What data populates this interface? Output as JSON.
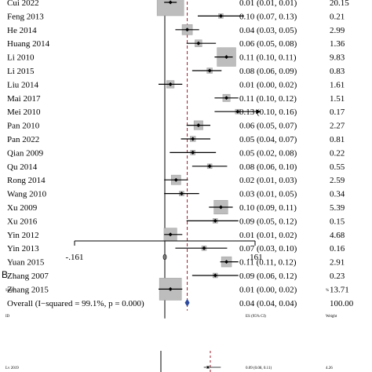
{
  "chart_data": [
    {
      "type": "forest",
      "panel": "",
      "xtick_labels": [
        "-.161",
        "0",
        ".161"
      ],
      "xticks": [
        -0.161,
        0,
        0.161
      ],
      "xlim": [
        -0.19,
        0.2
      ],
      "reference_line": 0,
      "overall_line": 0.04,
      "studies": [
        {
          "label": "Cui 2022",
          "es": 0.01,
          "ci": [
            0.01,
            0.01
          ],
          "ci_text": "0.01 (0.01, 0.01)",
          "weight": "20.15",
          "w": 20.15
        },
        {
          "label": "Feng 2013",
          "es": 0.1,
          "ci": [
            0.07,
            0.13
          ],
          "ci_text": "0.10 (0.07, 0.13)",
          "weight": "0.21",
          "w": 0.21
        },
        {
          "label": "He 2014",
          "es": 0.04,
          "ci": [
            0.03,
            0.05
          ],
          "ci_text": "0.04 (0.03, 0.05)",
          "weight": "2.99",
          "w": 2.99
        },
        {
          "label": "Huang 2014",
          "es": 0.06,
          "ci": [
            0.05,
            0.08
          ],
          "ci_text": "0.06 (0.05, 0.08)",
          "weight": "1.36",
          "w": 1.36
        },
        {
          "label": "Li 2010",
          "es": 0.11,
          "ci": [
            0.1,
            0.11
          ],
          "ci_text": "0.11 (0.10, 0.11)",
          "weight": "9.83",
          "w": 9.83
        },
        {
          "label": "Li 2015",
          "es": 0.08,
          "ci": [
            0.06,
            0.09
          ],
          "ci_text": "0.08 (0.06, 0.09)",
          "weight": "0.83",
          "w": 0.83
        },
        {
          "label": "Liu 2014",
          "es": 0.01,
          "ci": [
            0.0,
            0.02
          ],
          "ci_text": "0.01 (0.00, 0.02)",
          "weight": "1.61",
          "w": 1.61
        },
        {
          "label": "Mai 2017",
          "es": 0.11,
          "ci": [
            0.1,
            0.12
          ],
          "ci_text": "0.11 (0.10, 0.12)",
          "weight": "1.51",
          "w": 1.51
        },
        {
          "label": "Mei 2010",
          "es": 0.13,
          "ci": [
            0.1,
            0.16
          ],
          "ci_text": "0.13 (0.10, 0.16)",
          "weight": "0.17",
          "w": 0.17,
          "arrow": true
        },
        {
          "label": "Pan 2010",
          "es": 0.06,
          "ci": [
            0.05,
            0.07
          ],
          "ci_text": "0.06 (0.05, 0.07)",
          "weight": "2.27",
          "w": 2.27
        },
        {
          "label": "Pan 2022",
          "es": 0.05,
          "ci": [
            0.04,
            0.07
          ],
          "ci_text": "0.05 (0.04, 0.07)",
          "weight": "0.81",
          "w": 0.81
        },
        {
          "label": "Qian 2009",
          "es": 0.05,
          "ci": [
            0.02,
            0.08
          ],
          "ci_text": "0.05 (0.02, 0.08)",
          "weight": "0.22",
          "w": 0.22
        },
        {
          "label": "Qu 2014",
          "es": 0.08,
          "ci": [
            0.06,
            0.1
          ],
          "ci_text": "0.08 (0.06, 0.10)",
          "weight": "0.55",
          "w": 0.55
        },
        {
          "label": "Rong 2014",
          "es": 0.02,
          "ci": [
            0.01,
            0.03
          ],
          "ci_text": "0.02 (0.01, 0.03)",
          "weight": "2.59",
          "w": 2.59
        },
        {
          "label": "Wang 2010",
          "es": 0.03,
          "ci": [
            0.01,
            0.05
          ],
          "ci_text": "0.03 (0.01, 0.05)",
          "weight": "0.34",
          "w": 0.34
        },
        {
          "label": "Xu 2009",
          "es": 0.1,
          "ci": [
            0.09,
            0.11
          ],
          "ci_text": "0.10 (0.09, 0.11)",
          "weight": "5.39",
          "w": 5.39
        },
        {
          "label": "Xu 2016",
          "es": 0.09,
          "ci": [
            0.05,
            0.12
          ],
          "ci_text": "0.09 (0.05, 0.12)",
          "weight": "0.15",
          "w": 0.15
        },
        {
          "label": "Yin 2012",
          "es": 0.01,
          "ci": [
            0.01,
            0.02
          ],
          "ci_text": "0.01 (0.01, 0.02)",
          "weight": "4.68",
          "w": 4.68
        },
        {
          "label": "Yin 2013",
          "es": 0.07,
          "ci": [
            0.03,
            0.1
          ],
          "ci_text": "0.07 (0.03, 0.10)",
          "weight": "0.16",
          "w": 0.16
        },
        {
          "label": "Yuan 2015",
          "es": 0.11,
          "ci": [
            0.11,
            0.12
          ],
          "ci_text": "0.11 (0.11, 0.12)",
          "weight": "2.91",
          "w": 2.91
        },
        {
          "label": "Zhang 2007",
          "es": 0.09,
          "ci": [
            0.06,
            0.12
          ],
          "ci_text": "0.09 (0.06, 0.12)",
          "weight": "0.23",
          "w": 0.23
        },
        {
          "label": "Zhang 2015",
          "es": 0.01,
          "ci": [
            0.0,
            0.02
          ],
          "ci_text": "0.01 (0.00, 0.02)",
          "weight": "13.71",
          "w": 13.71
        }
      ],
      "overall": {
        "label": "Overall  (I−squared = 99.1%, p = 0.000)",
        "es": 0.04,
        "ci": [
          0.04,
          0.04
        ],
        "ci_text": "0.04 (0.04, 0.04)",
        "weight": "100.00"
      }
    },
    {
      "type": "forest",
      "panel": "B",
      "headers": {
        "study": "Study",
        "percent": "%",
        "id": "ID",
        "es": "ES (95% CI)",
        "weight": "Weight"
      },
      "studies": [
        {
          "label": "Lv 2019",
          "es": 0.09,
          "ci": [
            0.08,
            0.11
          ],
          "ci_text": "0.09 (0.08, 0.11)",
          "weight": "4.26"
        }
      ]
    }
  ]
}
